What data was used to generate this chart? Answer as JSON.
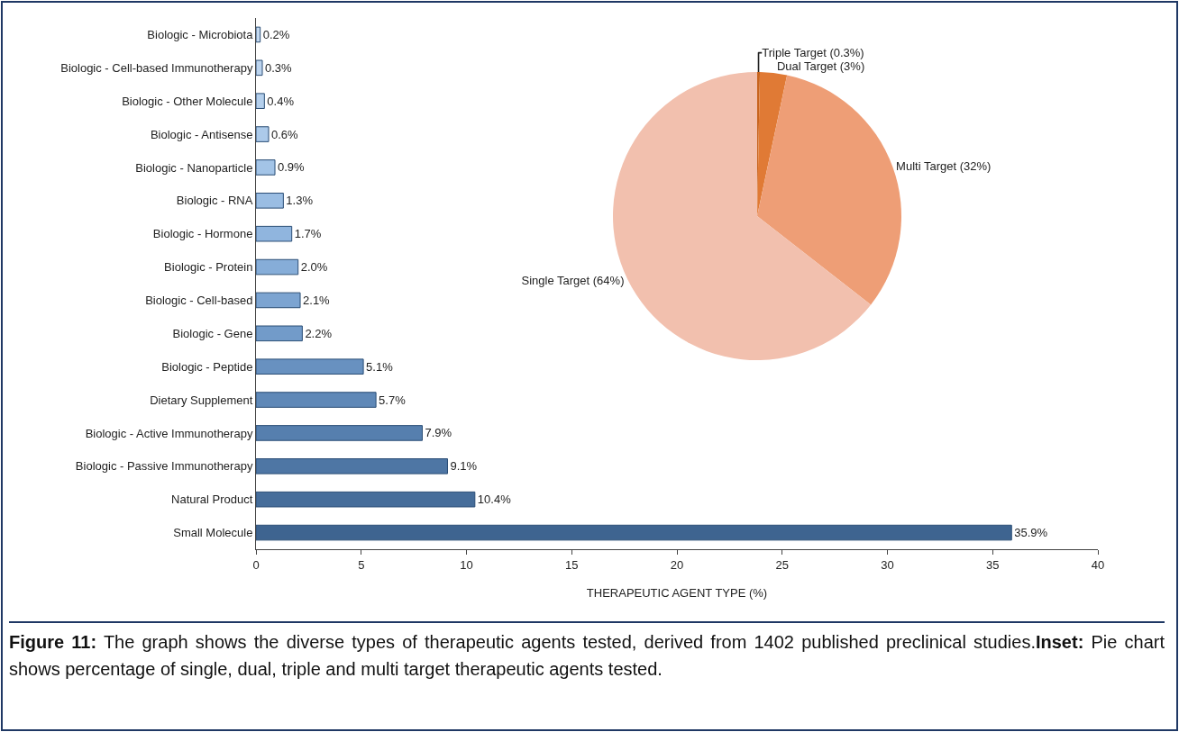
{
  "chart_data": [
    {
      "type": "bar",
      "orientation": "horizontal",
      "xlabel": "THERAPEUTIC AGENT TYPE (%)",
      "categories": [
        "Biologic - Microbiota",
        "Biologic - Cell-based Immunotherapy",
        "Biologic - Other Molecule",
        "Biologic - Antisense",
        "Biologic - Nanoparticle",
        "Biologic - RNA",
        "Biologic - Hormone",
        "Biologic - Protein",
        "Biologic - Cell-based",
        "Biologic - Gene",
        "Biologic - Peptide",
        "Dietary Supplement",
        "Biologic - Active Immunotherapy",
        "Biologic - Passive Immunotherapy",
        "Natural Product",
        "Small Molecule"
      ],
      "values": [
        0.2,
        0.3,
        0.4,
        0.6,
        0.9,
        1.3,
        1.7,
        2.0,
        2.1,
        2.2,
        5.1,
        5.7,
        7.9,
        9.1,
        10.4,
        35.9
      ],
      "value_labels": [
        "0.2%",
        "0.3%",
        "0.4%",
        "0.6%",
        "0.9%",
        "1.3%",
        "1.7%",
        "2.0%",
        "2.1%",
        "2.2%",
        "5.1%",
        "5.7%",
        "7.9%",
        "9.1%",
        "10.4%",
        "35.9%"
      ],
      "colors": [
        "#c4d9f0",
        "#bcd4ee",
        "#b4cfec",
        "#accaea",
        "#a3c4e7",
        "#9abde3",
        "#90b5de",
        "#86add8",
        "#7ca4d1",
        "#729bc9",
        "#6891c0",
        "#5f88b7",
        "#567fae",
        "#4e76a4",
        "#466d9a",
        "#3e6490"
      ],
      "xlim": [
        0,
        40
      ],
      "xticks": [
        0,
        5,
        10,
        15,
        20,
        25,
        30,
        35,
        40
      ],
      "grid": false,
      "legend": false,
      "annotations": [
        "Figure 11:",
        " The graph shows the diverse types of therapeutic agents tested, derived from 1402 published preclinical studies.",
        "Inset:",
        " Pie chart shows percentage of single, dual, triple and multi target therapeutic agents tested."
      ]
    },
    {
      "type": "pie",
      "categories": [
        "Triple Target",
        "Dual Target",
        "Multi Target",
        "Single Target"
      ],
      "values": [
        0.3,
        3,
        32,
        64
      ],
      "value_labels": [
        "(0.3%)",
        "(3%)",
        "(32%)",
        "(64%)"
      ],
      "colors": [
        "#c8641e",
        "#e07a35",
        "#ee9e76",
        "#f2c0ae"
      ],
      "legend": false
    }
  ]
}
